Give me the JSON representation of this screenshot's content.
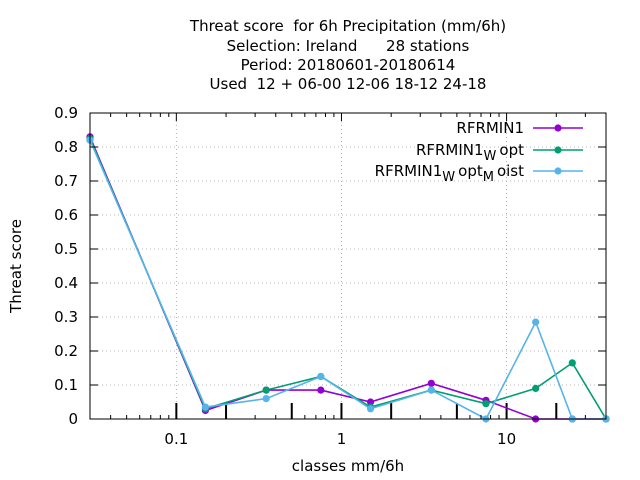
{
  "chart_data": {
    "type": "line",
    "title_lines": [
      "Threat score  for 6h Precipitation (mm/6h)",
      "Selection: Ireland      28 stations",
      "Period: 20180601-20180614",
      "Used  12 + 06-00 12-06 18-12 24-18"
    ],
    "xlabel": "classes mm/6h",
    "ylabel": "Threat score",
    "x_scale": "log",
    "xlim": [
      0.03,
      40
    ],
    "ylim": [
      0,
      0.9
    ],
    "x_ticks": [
      0.1,
      1,
      10
    ],
    "x_tick_labels": [
      "0.1",
      "1",
      "10"
    ],
    "y_ticks": [
      0,
      0.1,
      0.2,
      0.3,
      0.4,
      0.5,
      0.6,
      0.7,
      0.8,
      0.9
    ],
    "y_tick_labels": [
      "0",
      "0.1",
      "0.2",
      "0.3",
      "0.4",
      "0.5",
      "0.6",
      "0.7",
      "0.8",
      "0.9"
    ],
    "grid": true,
    "legend_position": "top-right",
    "x": [
      0.03,
      0.15,
      0.35,
      0.75,
      1.5,
      3.5,
      7.5,
      15,
      25,
      40
    ],
    "series": [
      {
        "name": "RFRMIN1",
        "color": "#9400d3",
        "values": [
          0.83,
          0.025,
          0.085,
          0.085,
          0.05,
          0.105,
          0.055,
          0.0,
          0.0,
          0.0
        ]
      },
      {
        "name": "RFRMIN1",
        "sub1": "W",
        "tail1": "opt",
        "color": "#009e73",
        "values": [
          0.825,
          0.03,
          0.085,
          0.125,
          0.035,
          0.085,
          0.045,
          0.09,
          0.165,
          0.0
        ]
      },
      {
        "name": "RFRMIN1",
        "sub1": "W",
        "tail1": "opt",
        "sub2": "M",
        "tail2": "oist",
        "color": "#56b4e9",
        "values": [
          0.82,
          0.035,
          0.06,
          0.125,
          0.03,
          0.085,
          0.0,
          0.285,
          0.0,
          0.0
        ]
      }
    ],
    "verification_marks_x": [
      0.1,
      0.2,
      0.5,
      1,
      2,
      5,
      10,
      20
    ]
  }
}
